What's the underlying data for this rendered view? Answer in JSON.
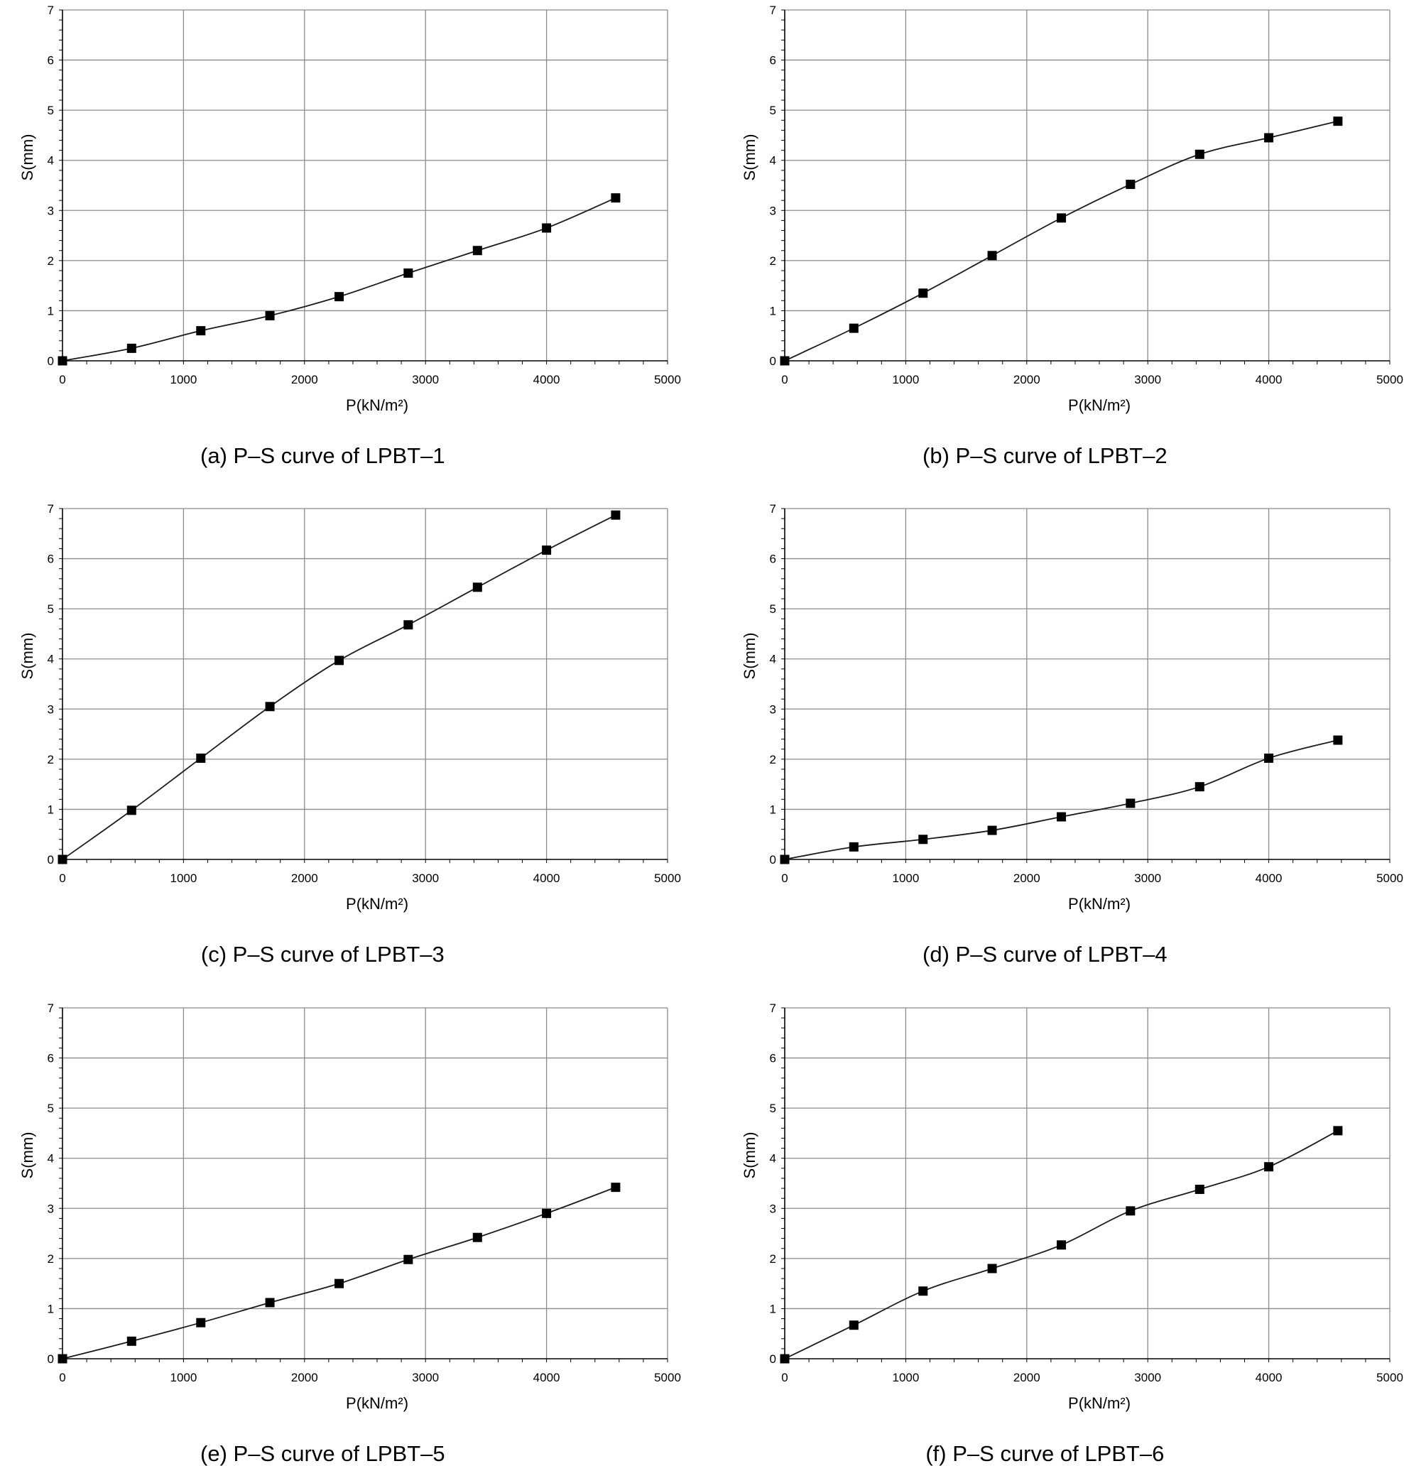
{
  "chart_data": [
    {
      "type": "line",
      "caption": "(a) P–S curve of LPBT–1",
      "xlabel": "P(kN/m²)",
      "ylabel": "S(mm)",
      "xlim": [
        0,
        5000
      ],
      "ylim": [
        0,
        7
      ],
      "xticks": [
        "0",
        "1000",
        "2000",
        "3000",
        "4000",
        "5000"
      ],
      "yticks": [
        "0",
        "1",
        "2",
        "3",
        "4",
        "5",
        "6",
        "7"
      ],
      "grid": true,
      "x": [
        0,
        571,
        1143,
        1714,
        2286,
        2857,
        3429,
        4000,
        4571
      ],
      "y": [
        0,
        0.25,
        0.6,
        0.9,
        1.28,
        1.75,
        2.2,
        2.65,
        3.25
      ]
    },
    {
      "type": "line",
      "caption": "(b) P–S curve of LPBT–2",
      "xlabel": "P(kN/m²)",
      "ylabel": "S(mm)",
      "xlim": [
        0,
        5000
      ],
      "ylim": [
        0,
        7
      ],
      "xticks": [
        "0",
        "1000",
        "2000",
        "3000",
        "4000",
        "5000"
      ],
      "yticks": [
        "0",
        "1",
        "2",
        "3",
        "4",
        "5",
        "6",
        "7"
      ],
      "grid": true,
      "x": [
        0,
        571,
        1143,
        1714,
        2286,
        2857,
        3429,
        4000,
        4571
      ],
      "y": [
        0,
        0.65,
        1.35,
        2.1,
        2.85,
        3.52,
        4.12,
        4.45,
        4.78
      ]
    },
    {
      "type": "line",
      "caption": "(c) P–S curve of LPBT–3",
      "xlabel": "P(kN/m²)",
      "ylabel": "S(mm)",
      "xlim": [
        0,
        5000
      ],
      "ylim": [
        0,
        7
      ],
      "xticks": [
        "0",
        "1000",
        "2000",
        "3000",
        "4000",
        "5000"
      ],
      "yticks": [
        "0",
        "1",
        "2",
        "3",
        "4",
        "5",
        "6",
        "7"
      ],
      "grid": true,
      "x": [
        0,
        571,
        1143,
        1714,
        2286,
        2857,
        3429,
        4000,
        4571
      ],
      "y": [
        0,
        0.98,
        2.02,
        3.05,
        3.97,
        4.68,
        5.43,
        6.17,
        6.87
      ]
    },
    {
      "type": "line",
      "caption": "(d) P–S curve of LPBT–4",
      "xlabel": "P(kN/m²)",
      "ylabel": "S(mm)",
      "xlim": [
        0,
        5000
      ],
      "ylim": [
        0,
        7
      ],
      "xticks": [
        "0",
        "1000",
        "2000",
        "3000",
        "4000",
        "5000"
      ],
      "yticks": [
        "0",
        "1",
        "2",
        "3",
        "4",
        "5",
        "6",
        "7"
      ],
      "grid": true,
      "x": [
        0,
        571,
        1143,
        1714,
        2286,
        2857,
        3429,
        4000,
        4571
      ],
      "y": [
        0,
        0.25,
        0.4,
        0.58,
        0.85,
        1.12,
        1.45,
        2.02,
        2.38
      ]
    },
    {
      "type": "line",
      "caption": "(e) P–S curve of LPBT–5",
      "xlabel": "P(kN/m²)",
      "ylabel": "S(mm)",
      "xlim": [
        0,
        5000
      ],
      "ylim": [
        0,
        7
      ],
      "xticks": [
        "0",
        "1000",
        "2000",
        "3000",
        "4000",
        "5000"
      ],
      "yticks": [
        "0",
        "1",
        "2",
        "3",
        "4",
        "5",
        "6",
        "7"
      ],
      "grid": true,
      "x": [
        0,
        571,
        1143,
        1714,
        2286,
        2857,
        3429,
        4000,
        4571
      ],
      "y": [
        0,
        0.35,
        0.72,
        1.12,
        1.5,
        1.98,
        2.42,
        2.9,
        3.42
      ]
    },
    {
      "type": "line",
      "caption": "(f) P–S curve of LPBT–6",
      "xlabel": "P(kN/m²)",
      "ylabel": "S(mm)",
      "xlim": [
        0,
        5000
      ],
      "ylim": [
        0,
        7
      ],
      "xticks": [
        "0",
        "1000",
        "2000",
        "3000",
        "4000",
        "5000"
      ],
      "yticks": [
        "0",
        "1",
        "2",
        "3",
        "4",
        "5",
        "6",
        "7"
      ],
      "grid": true,
      "x": [
        0,
        571,
        1143,
        1714,
        2286,
        2857,
        3429,
        4000,
        4571
      ],
      "y": [
        0,
        0.67,
        1.35,
        1.8,
        2.27,
        2.95,
        3.38,
        3.83,
        4.55
      ]
    }
  ]
}
